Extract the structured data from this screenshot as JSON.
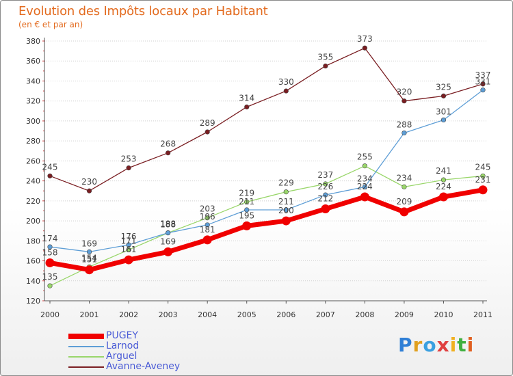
{
  "title": "Evolution des Impôts locaux par Habitant",
  "subtitle": "(en € et par an)",
  "logo": {
    "text": "Proxiti",
    "letters": [
      {
        "ch": "P",
        "color": "#2f7fd6"
      },
      {
        "ch": "r",
        "color": "#e0a020"
      },
      {
        "ch": "o",
        "color": "#3aa0e0"
      },
      {
        "ch": "x",
        "color": "#e04040"
      },
      {
        "ch": "i",
        "color": "#f0b020"
      },
      {
        "ch": "t",
        "color": "#40b040"
      },
      {
        "ch": "i",
        "color": "#e06020"
      }
    ]
  },
  "chart_data": {
    "type": "line",
    "title": "Evolution des Impôts locaux par Habitant",
    "subtitle": "(en € et par an)",
    "x": [
      "2000",
      "2001",
      "2002",
      "2003",
      "2004",
      "2005",
      "2006",
      "2007",
      "2008",
      "2009",
      "2010",
      "2011"
    ],
    "ylim": [
      120,
      380
    ],
    "yticks": [
      120,
      140,
      160,
      180,
      200,
      220,
      240,
      260,
      280,
      300,
      320,
      340,
      360,
      380
    ],
    "grid": "horizontal dotted",
    "legend_position": "bottom-left",
    "series": [
      {
        "name": "Avanne-Aveney",
        "color": "#7a1e22",
        "values": [
          245,
          230,
          253,
          268,
          289,
          314,
          330,
          355,
          373,
          320,
          325,
          337
        ]
      },
      {
        "name": "Arguel",
        "color": "#99d66a",
        "values": [
          135,
          154,
          171,
          188,
          203,
          219,
          229,
          237,
          255,
          234,
          241,
          245
        ]
      },
      {
        "name": "Larnod",
        "color": "#5e9ed6",
        "values": [
          174,
          169,
          176,
          188,
          196,
          211,
          211,
          226,
          234,
          288,
          301,
          331
        ]
      },
      {
        "name": "PUGEY",
        "color": "#f00000",
        "values": [
          158,
          151,
          161,
          169,
          181,
          195,
          200,
          212,
          224,
          209,
          224,
          231
        ]
      }
    ]
  }
}
